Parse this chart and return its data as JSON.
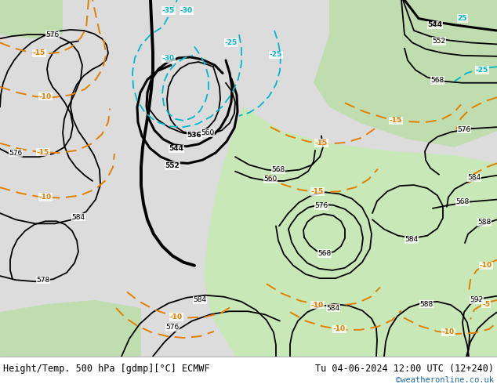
{
  "title_left": "Height/Temp. 500 hPa [gdmp][°C] ECMWF",
  "title_right": "Tu 04-06-2024 12:00 UTC (12+240)",
  "credit": "©weatheronline.co.uk",
  "fig_width": 6.34,
  "fig_height": 4.9,
  "dpi": 100,
  "bg_gray": "#c8c8c8",
  "bg_white": "#e8e8e8",
  "green_light": "#c8e8b8",
  "green_mid": "#b0d8a0",
  "black": "#000000",
  "orange": "#e08000",
  "cyan": "#00b8c8",
  "label_fs": 6.5,
  "title_fs": 8.5,
  "credit_fs": 7.5
}
